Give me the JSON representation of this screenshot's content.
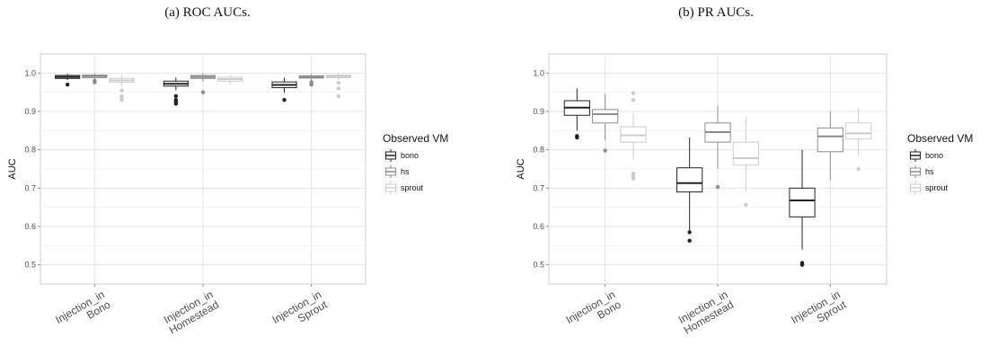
{
  "chart_data": [
    {
      "type": "box",
      "title": "(a) ROC AUCs.",
      "ylabel": "AUC",
      "ylim": [
        0.45,
        1.05
      ],
      "yticks": [
        "0.5",
        "0.6",
        "0.7",
        "0.8",
        "0.9",
        "1.0"
      ],
      "grid": true,
      "legend_position": "right",
      "legend_title": "Observed VM",
      "categories": [
        "Injection_in\nBono",
        "Injection_in\nHomestead",
        "Injection_in\nSprout"
      ],
      "series": [
        {
          "name": "bono",
          "color": "#222222",
          "boxes": [
            {
              "whisker_low": 0.982,
              "q1": 0.986,
              "median": 0.99,
              "q3": 0.994,
              "whisker_high": 0.998,
              "outliers": [
                0.97
              ]
            },
            {
              "whisker_low": 0.955,
              "q1": 0.966,
              "median": 0.972,
              "q3": 0.979,
              "whisker_high": 0.988,
              "outliers": [
                0.92,
                0.925,
                0.93,
                0.94
              ]
            },
            {
              "whisker_low": 0.948,
              "q1": 0.962,
              "median": 0.969,
              "q3": 0.977,
              "whisker_high": 0.988,
              "outliers": [
                0.93
              ]
            }
          ]
        },
        {
          "name": "hs",
          "color": "#8c8c8c",
          "boxes": [
            {
              "whisker_low": 0.984,
              "q1": 0.988,
              "median": 0.992,
              "q3": 0.995,
              "whisker_high": 0.999,
              "outliers": [
                0.976,
                0.98
              ]
            },
            {
              "whisker_low": 0.978,
              "q1": 0.986,
              "median": 0.99,
              "q3": 0.994,
              "whisker_high": 0.999,
              "outliers": [
                0.95
              ]
            },
            {
              "whisker_low": 0.98,
              "q1": 0.987,
              "median": 0.99,
              "q3": 0.993,
              "whisker_high": 0.998,
              "outliers": [
                0.97,
                0.976
              ]
            }
          ]
        },
        {
          "name": "sprout",
          "color": "#cccccc",
          "boxes": [
            {
              "whisker_low": 0.966,
              "q1": 0.976,
              "median": 0.981,
              "q3": 0.986,
              "whisker_high": 0.995,
              "outliers": [
                0.93,
                0.935,
                0.94,
                0.955
              ]
            },
            {
              "whisker_low": 0.97,
              "q1": 0.979,
              "median": 0.984,
              "q3": 0.989,
              "whisker_high": 0.996,
              "outliers": []
            },
            {
              "whisker_low": 0.982,
              "q1": 0.988,
              "median": 0.991,
              "q3": 0.995,
              "whisker_high": 0.999,
              "outliers": [
                0.94,
                0.96,
                0.975
              ]
            }
          ]
        }
      ]
    },
    {
      "type": "box",
      "title": "(b) PR AUCs.",
      "ylabel": "AUC",
      "ylim": [
        0.45,
        1.05
      ],
      "yticks": [
        "0.5",
        "0.6",
        "0.7",
        "0.8",
        "0.9",
        "1.0"
      ],
      "grid": true,
      "legend_position": "right",
      "legend_title": "Observed VM",
      "categories": [
        "Injection_in\nBono",
        "Injection_in\nHomestead",
        "Injection_in\nSprout"
      ],
      "series": [
        {
          "name": "bono",
          "color": "#222222",
          "boxes": [
            {
              "whisker_low": 0.85,
              "q1": 0.89,
              "median": 0.91,
              "q3": 0.928,
              "whisker_high": 0.96,
              "outliers": [
                0.832,
                0.836
              ]
            },
            {
              "whisker_low": 0.59,
              "q1": 0.69,
              "median": 0.713,
              "q3": 0.753,
              "whisker_high": 0.832,
              "outliers": [
                0.563,
                0.585
              ]
            },
            {
              "whisker_low": 0.54,
              "q1": 0.625,
              "median": 0.668,
              "q3": 0.7,
              "whisker_high": 0.8,
              "outliers": [
                0.5,
                0.505
              ]
            }
          ]
        },
        {
          "name": "hs",
          "color": "#8c8c8c",
          "boxes": [
            {
              "whisker_low": 0.825,
              "q1": 0.87,
              "median": 0.893,
              "q3": 0.905,
              "whisker_high": 0.945,
              "outliers": [
                0.798
              ]
            },
            {
              "whisker_low": 0.75,
              "q1": 0.82,
              "median": 0.846,
              "q3": 0.87,
              "whisker_high": 0.915,
              "outliers": [
                0.703
              ]
            },
            {
              "whisker_low": 0.72,
              "q1": 0.795,
              "median": 0.835,
              "q3": 0.857,
              "whisker_high": 0.9,
              "outliers": []
            }
          ]
        },
        {
          "name": "sprout",
          "color": "#cccccc",
          "boxes": [
            {
              "whisker_low": 0.775,
              "q1": 0.82,
              "median": 0.838,
              "q3": 0.86,
              "whisker_high": 0.895,
              "outliers": [
                0.725,
                0.73,
                0.738,
                0.93,
                0.948
              ]
            },
            {
              "whisker_low": 0.69,
              "q1": 0.76,
              "median": 0.778,
              "q3": 0.82,
              "whisker_high": 0.885,
              "outliers": [
                0.657
              ]
            },
            {
              "whisker_low": 0.785,
              "q1": 0.828,
              "median": 0.843,
              "q3": 0.87,
              "whisker_high": 0.91,
              "outliers": [
                0.75
              ]
            }
          ]
        }
      ]
    }
  ]
}
